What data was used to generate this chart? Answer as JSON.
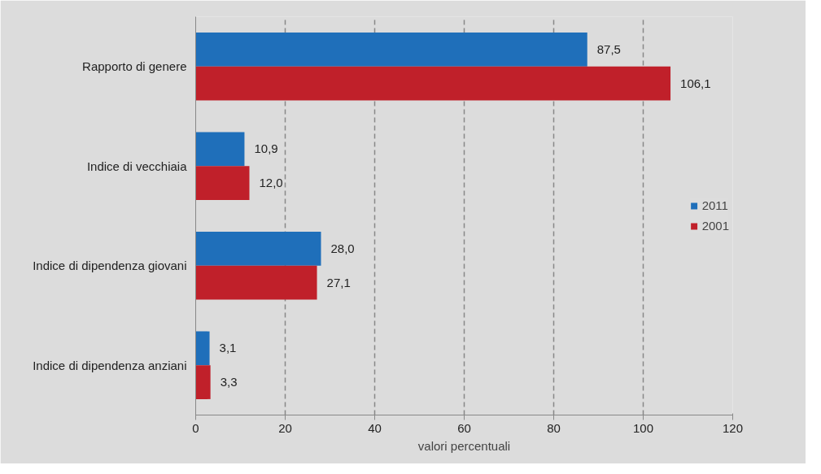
{
  "chart_data": {
    "type": "bar",
    "orientation": "horizontal",
    "xlabel": "valori percentuali",
    "categories": [
      "Rapporto di genere",
      "Indice di vecchiaia",
      "Indice di dipendenza giovani",
      "Indice di dipendenza anziani"
    ],
    "series": [
      {
        "name": "2011",
        "color": "#1f6fba",
        "values": [
          87.5,
          10.9,
          28.0,
          3.1
        ],
        "value_labels": [
          "87,5",
          "10,9",
          "28,0",
          "3,1"
        ]
      },
      {
        "name": "2001",
        "color": "#c0202a",
        "values": [
          106.1,
          12.0,
          27.1,
          3.3
        ],
        "value_labels": [
          "106,1",
          "12,0",
          "27,1",
          "3,3"
        ]
      }
    ],
    "xlim": [
      0,
      120
    ],
    "xticks": [
      0,
      20,
      40,
      60,
      80,
      100,
      120
    ],
    "grid": "x",
    "line_style": "dashed",
    "legend": "right"
  }
}
